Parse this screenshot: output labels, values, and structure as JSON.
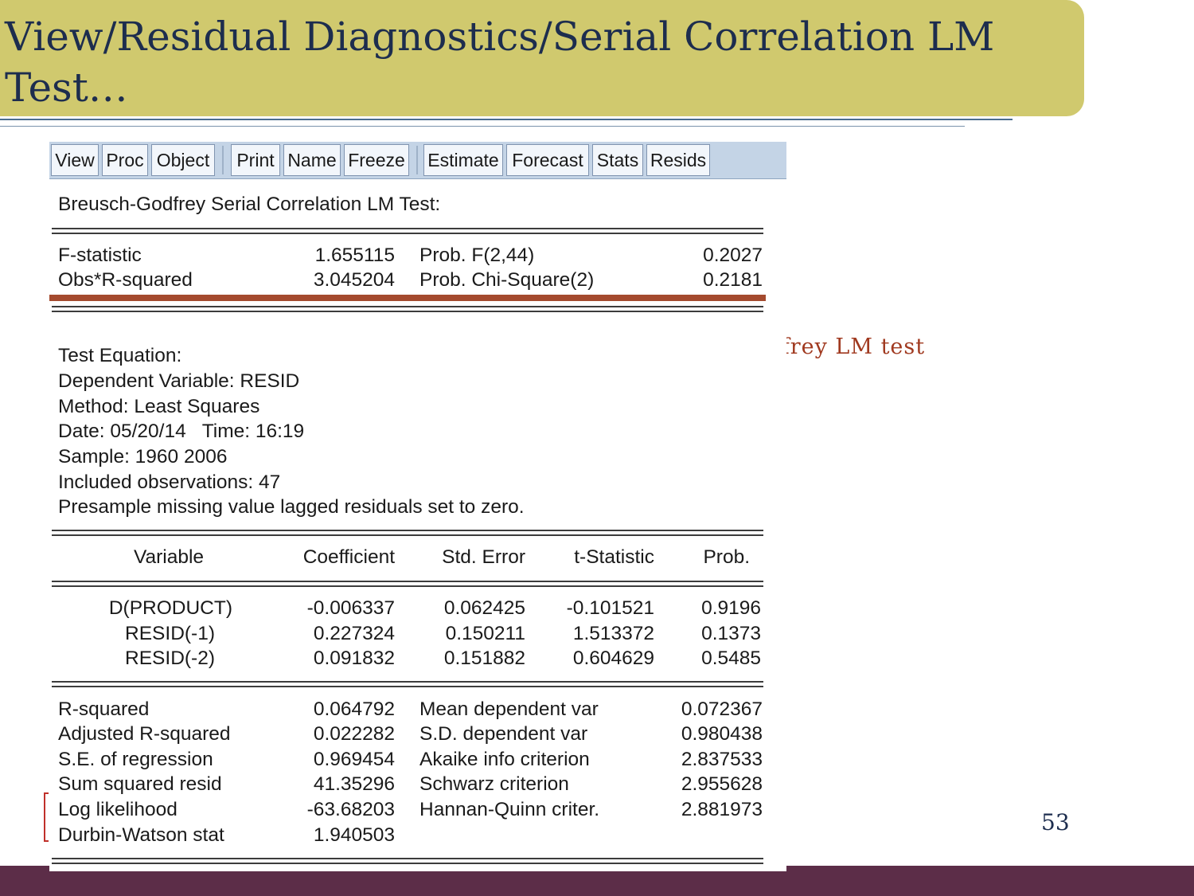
{
  "slide": {
    "title": "View/Residual Diagnostics/Serial Correlation LM Test…",
    "bullet": "Breusch-Godfrey LM test",
    "page_number": "53"
  },
  "toolbar": {
    "buttons": [
      "View",
      "Proc",
      "Object",
      "Print",
      "Name",
      "Freeze",
      "Estimate",
      "Forecast",
      "Stats",
      "Resids"
    ]
  },
  "output": {
    "header": "Breusch-Godfrey Serial Correlation LM Test:",
    "test_stats": [
      {
        "label": "F-statistic",
        "value": "1.655115",
        "prob_label": "Prob. F(2,44)",
        "prob": "0.2027"
      },
      {
        "label": "Obs*R-squared",
        "value": "3.045204",
        "prob_label": "Prob. Chi-Square(2)",
        "prob": "0.2181"
      }
    ],
    "info_lines": [
      "Test Equation:",
      "Dependent Variable: RESID",
      "Method: Least Squares",
      "Date: 05/20/14   Time: 16:19",
      "Sample: 1960 2006",
      "Included observations: 47",
      "Presample missing value lagged residuals set to zero."
    ],
    "columns": [
      "Variable",
      "Coefficient",
      "Std. Error",
      "t-Statistic",
      "Prob."
    ],
    "rows": [
      [
        "D(PRODUCT)",
        "-0.006337",
        "0.062425",
        "-0.101521",
        "0.9196"
      ],
      [
        "RESID(-1)",
        "0.227324",
        "0.150211",
        "1.513372",
        "0.1373"
      ],
      [
        "RESID(-2)",
        "0.091832",
        "0.151882",
        "0.604629",
        "0.5485"
      ]
    ],
    "summary": [
      [
        "R-squared",
        "0.064792",
        "Mean dependent var",
        "0.072367"
      ],
      [
        "Adjusted R-squared",
        "0.022282",
        "S.D. dependent var",
        "0.980438"
      ],
      [
        "S.E. of regression",
        "0.969454",
        "Akaike info criterion",
        "2.837533"
      ],
      [
        "Sum squared resid",
        "41.35296",
        "Schwarz criterion",
        "2.955628"
      ],
      [
        "Log likelihood",
        "-63.68203",
        "Hannan-Quinn criter.",
        "2.881973"
      ],
      [
        "Durbin-Watson stat",
        "1.940503",
        "",
        ""
      ]
    ]
  }
}
